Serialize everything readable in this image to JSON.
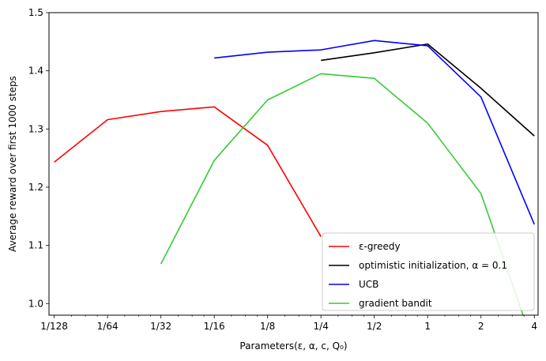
{
  "chart_data": {
    "type": "line",
    "xscale": "log2",
    "x_ticks": [
      {
        "value": 0.0078125,
        "label": "1/128"
      },
      {
        "value": 0.015625,
        "label": "1/64"
      },
      {
        "value": 0.03125,
        "label": "1/32"
      },
      {
        "value": 0.0625,
        "label": "1/16"
      },
      {
        "value": 0.125,
        "label": "1/8"
      },
      {
        "value": 0.25,
        "label": "1/4"
      },
      {
        "value": 0.5,
        "label": "1/2"
      },
      {
        "value": 1,
        "label": "1"
      },
      {
        "value": 2,
        "label": "2"
      },
      {
        "value": 4,
        "label": "4"
      }
    ],
    "xlim": [
      0.0073,
      4.2
    ],
    "ylim": [
      0.98,
      1.5
    ],
    "y_ticks": [
      1.0,
      1.1,
      1.2,
      1.3,
      1.4,
      1.5
    ],
    "y_tick_labels": [
      "1.0",
      "1.1",
      "1.2",
      "1.3",
      "1.4",
      "1.5"
    ],
    "xlabel": "Parameters(ε, α, c, Q₀)",
    "ylabel": "Average reward over first 1000 steps",
    "legend_position": "lower-right",
    "series": [
      {
        "name": "ε-greedy",
        "color": "#ff0000",
        "x": [
          0.0078125,
          0.015625,
          0.03125,
          0.0625,
          0.125,
          0.25
        ],
        "y": [
          1.243,
          1.316,
          1.33,
          1.338,
          1.272,
          1.115
        ]
      },
      {
        "name": "optimistic initialization, α = 0.1",
        "color": "#000000",
        "x": [
          0.25,
          0.5,
          1,
          2,
          4
        ],
        "y": [
          1.418,
          1.431,
          1.446,
          1.37,
          1.288
        ]
      },
      {
        "name": "UCB",
        "color": "#0000ff",
        "x": [
          0.0625,
          0.125,
          0.25,
          0.5,
          1,
          2,
          4
        ],
        "y": [
          1.422,
          1.432,
          1.436,
          1.452,
          1.443,
          1.355,
          1.136
        ]
      },
      {
        "name": "gradient bandit",
        "color": "#33cc33",
        "x": [
          0.03125,
          0.0625,
          0.125,
          0.25,
          0.5,
          1,
          2,
          3.5
        ],
        "y": [
          1.068,
          1.246,
          1.35,
          1.395,
          1.387,
          1.31,
          1.189,
          0.975
        ]
      }
    ]
  }
}
